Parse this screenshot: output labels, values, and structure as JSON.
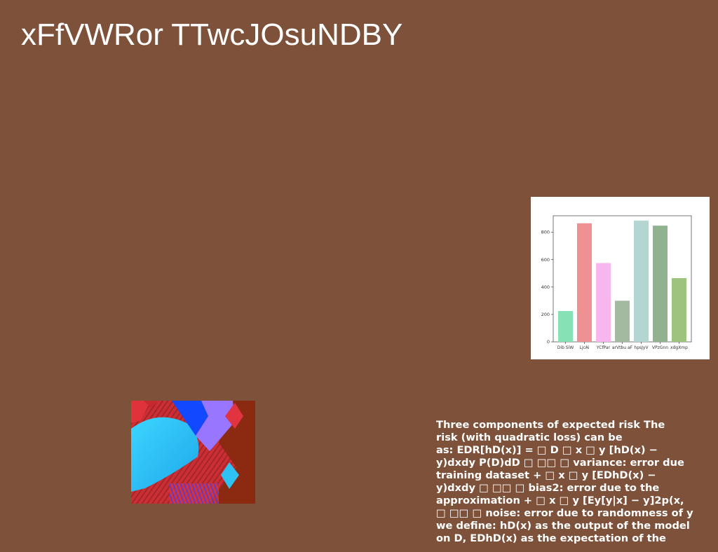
{
  "page": {
    "background_color": "#7e513a",
    "title": "xFfVWRor TTwcJOsuNDBY"
  },
  "chart_data": {
    "type": "bar",
    "title": "",
    "xlabel": "",
    "ylabel": "",
    "categories": [
      "Dib SiW",
      "LjcAi",
      "YCfPar",
      "arVtbu aF",
      "hpsJyV",
      "VPzGnn",
      "xdgXmp"
    ],
    "values": [
      225,
      865,
      575,
      300,
      885,
      848,
      465
    ],
    "colors": [
      "#86e2b5",
      "#ef9093",
      "#f8b6ee",
      "#a3baa1",
      "#b3d6d2",
      "#90b28e",
      "#9cc47e"
    ],
    "yticks": [
      0,
      200,
      400,
      600,
      800
    ],
    "ylim": [
      0,
      920
    ],
    "grid": false,
    "legend": "none"
  },
  "image": {
    "icon": "abstract-geometric-image",
    "colors": [
      "#2ec2f2",
      "#d8343e",
      "#1248ff",
      "#9976ff",
      "#8b2a10"
    ]
  },
  "text_block": {
    "lines": [
      "Three components of expected risk The",
      "risk (with quadratic loss) can be",
      "as: EDR[hD(x)] = □ D □ x □ y [hD(x) −",
      "y)dxdy P(D)dD □ □□ □ variance: error due",
      "training dataset + □ x □ y [EDhD(x) −",
      "y)dxdy □ □□ □ bias2: error due to the",
      "approximation + □ x □ y [Ey[y|x] − y]2p(x,",
      "□ □□ □ noise: error due to randomness of y",
      "we define: hD(x) as the output of the model",
      "on D, EDhD(x) as the expectation of the"
    ]
  }
}
